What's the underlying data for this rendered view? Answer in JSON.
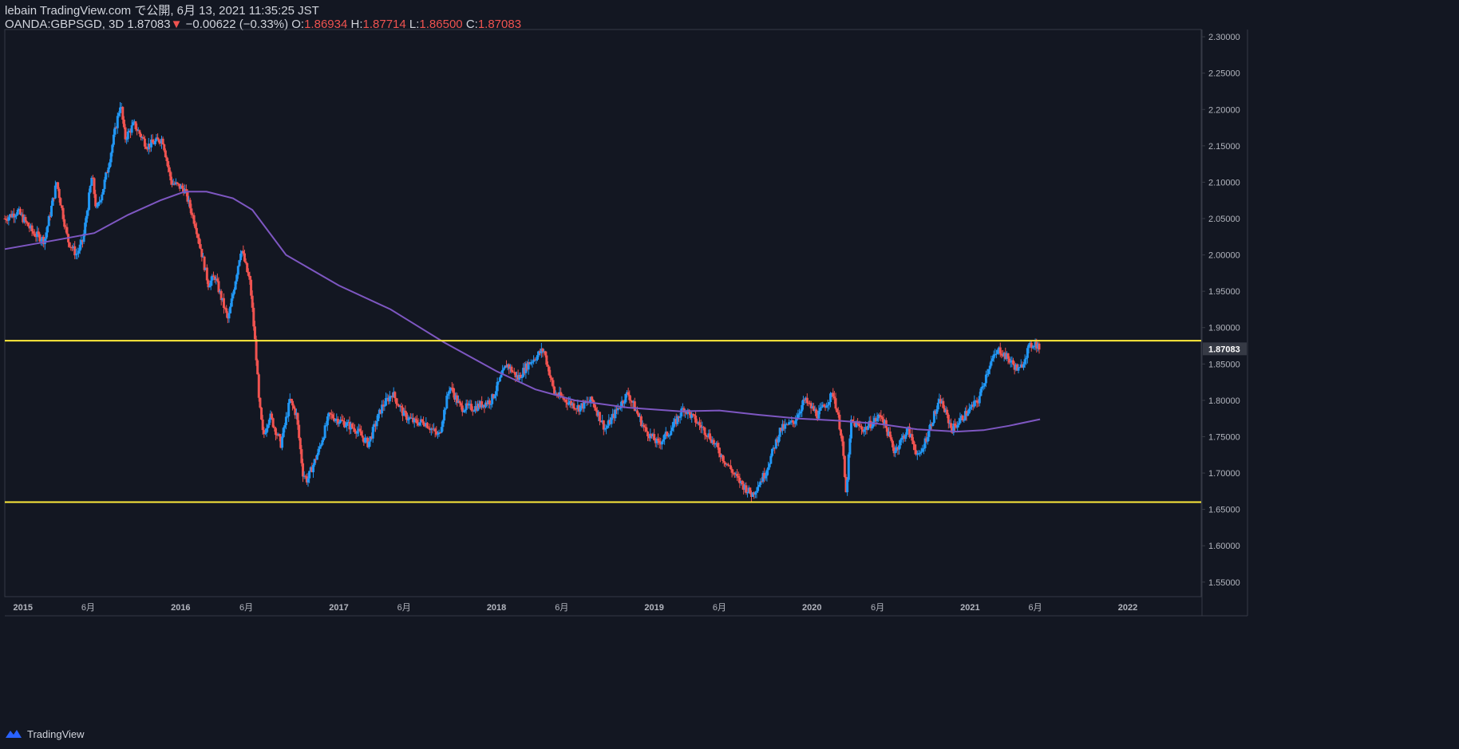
{
  "header": {
    "line1": "lebain TradingView.com で公開, 6月 13, 2021 11:35:25 JST",
    "symbol": "OANDA:GBPSGD, 3D",
    "last": "1.87083",
    "change_arrow": "▼",
    "change": "−0.00622 (−0.33%)",
    "o_label": "O:",
    "o_value": "1.86934",
    "h_label": "H:",
    "h_value": "1.87714",
    "l_label": "L:",
    "l_value": "1.86500",
    "c_label": "C:",
    "c_value": "1.87083"
  },
  "footer": {
    "brand": "TradingView",
    "logo_icon": "tradingview-logo-icon"
  },
  "colors": {
    "background": "#131722",
    "up": "#2196f3",
    "down": "#ef5350",
    "ma": "#7e57c2",
    "level": "#ffeb3b",
    "axis_text": "#b2b5be",
    "border": "#363a45"
  },
  "chart_data": {
    "type": "candlestick",
    "title": "OANDA:GBPSGD, 3D",
    "xlabel": "",
    "ylabel": "",
    "ylim": [
      1.53,
      2.31
    ],
    "xlim": [
      "2014-11-20",
      "2022-06-20"
    ],
    "y_ticks": [
      "1.55000",
      "1.60000",
      "1.65000",
      "1.70000",
      "1.75000",
      "1.80000",
      "1.85000",
      "1.90000",
      "1.95000",
      "2.00000",
      "2.05000",
      "2.10000",
      "2.15000",
      "2.20000",
      "2.25000",
      "2.30000"
    ],
    "x_ticks": [
      {
        "label": "2015",
        "date": "2015-01-01",
        "bold": true
      },
      {
        "label": "6月",
        "date": "2015-06-01",
        "bold": false
      },
      {
        "label": "2016",
        "date": "2016-01-01",
        "bold": true
      },
      {
        "label": "6月",
        "date": "2016-06-01",
        "bold": false
      },
      {
        "label": "2017",
        "date": "2017-01-01",
        "bold": true
      },
      {
        "label": "6月",
        "date": "2017-06-01",
        "bold": false
      },
      {
        "label": "2018",
        "date": "2018-01-01",
        "bold": true
      },
      {
        "label": "6月",
        "date": "2018-06-01",
        "bold": false
      },
      {
        "label": "2019",
        "date": "2019-01-01",
        "bold": true
      },
      {
        "label": "6月",
        "date": "2019-06-01",
        "bold": false
      },
      {
        "label": "2020",
        "date": "2020-01-01",
        "bold": true
      },
      {
        "label": "6月",
        "date": "2020-06-01",
        "bold": false
      },
      {
        "label": "2021",
        "date": "2021-01-01",
        "bold": true
      },
      {
        "label": "6月",
        "date": "2021-06-01",
        "bold": false
      },
      {
        "label": "2022",
        "date": "2022-01-01",
        "bold": true
      }
    ],
    "last_price_label": "1.87083",
    "horizontal_levels": [
      1.882,
      1.66
    ],
    "price_path": [
      {
        "date": "2014-11-20",
        "close": 2.05
      },
      {
        "date": "2014-12-20",
        "close": 2.06
      },
      {
        "date": "2015-01-25",
        "close": 2.03
      },
      {
        "date": "2015-02-20",
        "close": 2.02
      },
      {
        "date": "2015-03-20",
        "close": 2.1
      },
      {
        "date": "2015-04-15",
        "close": 2.02
      },
      {
        "date": "2015-05-05",
        "close": 2.0
      },
      {
        "date": "2015-05-20",
        "close": 2.02
      },
      {
        "date": "2015-06-10",
        "close": 2.11
      },
      {
        "date": "2015-06-20",
        "close": 2.06
      },
      {
        "date": "2015-07-05",
        "close": 2.09
      },
      {
        "date": "2015-07-20",
        "close": 2.13
      },
      {
        "date": "2015-08-15",
        "close": 2.21
      },
      {
        "date": "2015-08-25",
        "close": 2.16
      },
      {
        "date": "2015-09-15",
        "close": 2.18
      },
      {
        "date": "2015-10-15",
        "close": 2.15
      },
      {
        "date": "2015-11-20",
        "close": 2.16
      },
      {
        "date": "2015-12-10",
        "close": 2.1
      },
      {
        "date": "2016-01-10",
        "close": 2.09
      },
      {
        "date": "2016-02-05",
        "close": 2.04
      },
      {
        "date": "2016-03-05",
        "close": 1.96
      },
      {
        "date": "2016-03-20",
        "close": 1.97
      },
      {
        "date": "2016-04-20",
        "close": 1.91
      },
      {
        "date": "2016-05-05",
        "close": 1.96
      },
      {
        "date": "2016-05-20",
        "close": 2.01
      },
      {
        "date": "2016-06-10",
        "close": 1.96
      },
      {
        "date": "2016-06-24",
        "close": 1.86
      },
      {
        "date": "2016-06-30",
        "close": 1.8
      },
      {
        "date": "2016-07-10",
        "close": 1.75
      },
      {
        "date": "2016-07-25",
        "close": 1.78
      },
      {
        "date": "2016-08-20",
        "close": 1.74
      },
      {
        "date": "2016-09-10",
        "close": 1.8
      },
      {
        "date": "2016-09-25",
        "close": 1.78
      },
      {
        "date": "2016-10-10",
        "close": 1.7
      },
      {
        "date": "2016-10-20",
        "close": 1.69
      },
      {
        "date": "2016-11-15",
        "close": 1.73
      },
      {
        "date": "2016-12-10",
        "close": 1.78
      },
      {
        "date": "2017-01-10",
        "close": 1.77
      },
      {
        "date": "2017-02-10",
        "close": 1.76
      },
      {
        "date": "2017-03-10",
        "close": 1.74
      },
      {
        "date": "2017-04-10",
        "close": 1.79
      },
      {
        "date": "2017-05-05",
        "close": 1.81
      },
      {
        "date": "2017-06-01",
        "close": 1.78
      },
      {
        "date": "2017-06-25",
        "close": 1.77
      },
      {
        "date": "2017-07-20",
        "close": 1.77
      },
      {
        "date": "2017-08-20",
        "close": 1.75
      },
      {
        "date": "2017-09-15",
        "close": 1.82
      },
      {
        "date": "2017-10-10",
        "close": 1.79
      },
      {
        "date": "2017-11-10",
        "close": 1.79
      },
      {
        "date": "2017-12-20",
        "close": 1.8
      },
      {
        "date": "2018-01-25",
        "close": 1.85
      },
      {
        "date": "2018-02-20",
        "close": 1.83
      },
      {
        "date": "2018-03-15",
        "close": 1.85
      },
      {
        "date": "2018-04-20",
        "close": 1.87
      },
      {
        "date": "2018-05-15",
        "close": 1.81
      },
      {
        "date": "2018-06-10",
        "close": 1.8
      },
      {
        "date": "2018-07-10",
        "close": 1.79
      },
      {
        "date": "2018-08-10",
        "close": 1.8
      },
      {
        "date": "2018-09-10",
        "close": 1.76
      },
      {
        "date": "2018-10-10",
        "close": 1.79
      },
      {
        "date": "2018-11-01",
        "close": 1.81
      },
      {
        "date": "2018-12-10",
        "close": 1.76
      },
      {
        "date": "2019-01-10",
        "close": 1.74
      },
      {
        "date": "2019-02-10",
        "close": 1.76
      },
      {
        "date": "2019-03-10",
        "close": 1.79
      },
      {
        "date": "2019-04-10",
        "close": 1.77
      },
      {
        "date": "2019-05-10",
        "close": 1.75
      },
      {
        "date": "2019-06-10",
        "close": 1.72
      },
      {
        "date": "2019-07-15",
        "close": 1.69
      },
      {
        "date": "2019-08-15",
        "close": 1.67
      },
      {
        "date": "2019-09-15",
        "close": 1.7
      },
      {
        "date": "2019-10-20",
        "close": 1.76
      },
      {
        "date": "2019-11-20",
        "close": 1.77
      },
      {
        "date": "2019-12-15",
        "close": 1.8
      },
      {
        "date": "2020-01-15",
        "close": 1.78
      },
      {
        "date": "2020-02-20",
        "close": 1.81
      },
      {
        "date": "2020-03-10",
        "close": 1.75
      },
      {
        "date": "2020-03-20",
        "close": 1.67
      },
      {
        "date": "2020-04-01",
        "close": 1.77
      },
      {
        "date": "2020-05-01",
        "close": 1.76
      },
      {
        "date": "2020-06-10",
        "close": 1.78
      },
      {
        "date": "2020-07-10",
        "close": 1.73
      },
      {
        "date": "2020-08-10",
        "close": 1.76
      },
      {
        "date": "2020-09-05",
        "close": 1.72
      },
      {
        "date": "2020-10-10",
        "close": 1.78
      },
      {
        "date": "2020-10-25",
        "close": 1.8
      },
      {
        "date": "2020-11-20",
        "close": 1.76
      },
      {
        "date": "2020-12-20",
        "close": 1.78
      },
      {
        "date": "2021-01-20",
        "close": 1.8
      },
      {
        "date": "2021-02-15",
        "close": 1.85
      },
      {
        "date": "2021-03-10",
        "close": 1.87
      },
      {
        "date": "2021-04-10",
        "close": 1.85
      },
      {
        "date": "2021-04-25",
        "close": 1.84
      },
      {
        "date": "2021-05-15",
        "close": 1.87
      },
      {
        "date": "2021-05-30",
        "close": 1.88
      },
      {
        "date": "2021-06-12",
        "close": 1.87083
      }
    ],
    "series": [
      {
        "type": "moving_average",
        "points": [
          {
            "date": "2014-11-20",
            "value": 2.008
          },
          {
            "date": "2015-03-15",
            "value": 2.02
          },
          {
            "date": "2015-06-15",
            "value": 2.03
          },
          {
            "date": "2015-09-01",
            "value": 2.055
          },
          {
            "date": "2015-11-15",
            "value": 2.075
          },
          {
            "date": "2016-01-10",
            "value": 2.087
          },
          {
            "date": "2016-03-01",
            "value": 2.087
          },
          {
            "date": "2016-05-01",
            "value": 2.078
          },
          {
            "date": "2016-06-15",
            "value": 2.062
          },
          {
            "date": "2016-09-01",
            "value": 2.0
          },
          {
            "date": "2017-01-01",
            "value": 1.958
          },
          {
            "date": "2017-05-01",
            "value": 1.925
          },
          {
            "date": "2017-09-01",
            "value": 1.88
          },
          {
            "date": "2018-01-01",
            "value": 1.84
          },
          {
            "date": "2018-04-01",
            "value": 1.815
          },
          {
            "date": "2018-07-01",
            "value": 1.8
          },
          {
            "date": "2018-11-01",
            "value": 1.79
          },
          {
            "date": "2019-03-01",
            "value": 1.785
          },
          {
            "date": "2019-06-01",
            "value": 1.786
          },
          {
            "date": "2019-09-01",
            "value": 1.78
          },
          {
            "date": "2019-12-01",
            "value": 1.775
          },
          {
            "date": "2020-03-01",
            "value": 1.772
          },
          {
            "date": "2020-06-01",
            "value": 1.768
          },
          {
            "date": "2020-09-01",
            "value": 1.76
          },
          {
            "date": "2020-12-01",
            "value": 1.757
          },
          {
            "date": "2021-02-01",
            "value": 1.759
          },
          {
            "date": "2021-04-01",
            "value": 1.765
          },
          {
            "date": "2021-06-12",
            "value": 1.774
          }
        ]
      }
    ]
  }
}
